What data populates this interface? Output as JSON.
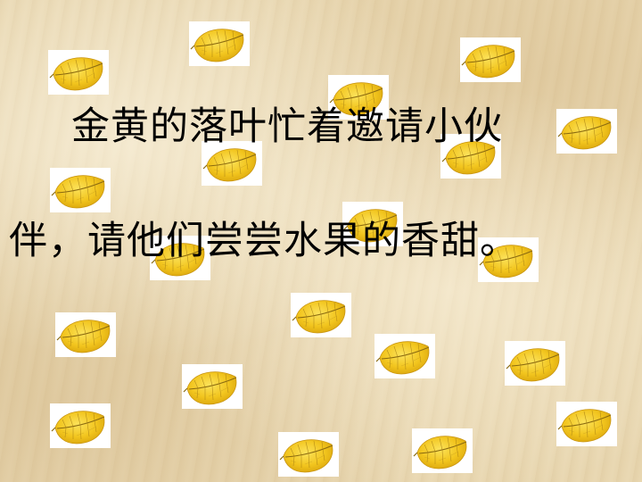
{
  "slide": {
    "text_lines": [
      "金黄的落叶忙着邀请小伙",
      "伴，请他们尝尝水果的香甜。"
    ],
    "leaf_icon": "yellow-leaf-icon",
    "colors": {
      "background": "#e7d5ae",
      "leaf_fill": "#f2c51e",
      "leaf_vein": "#8a6a10",
      "text": "#000000"
    }
  }
}
